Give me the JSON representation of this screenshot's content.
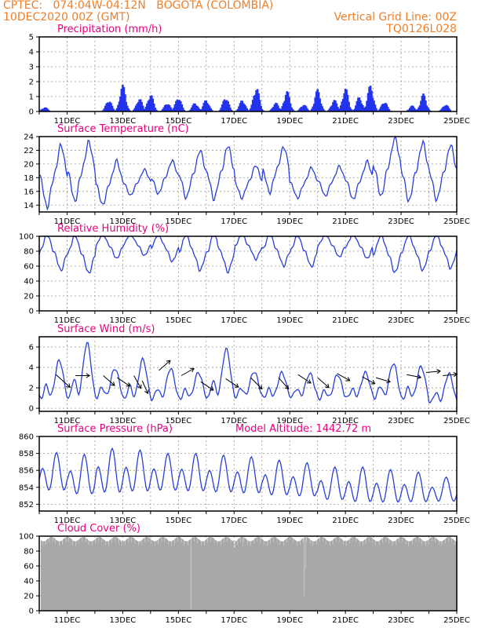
{
  "header": {
    "line1": "CPTEC:   074:04W-04:12N   BOGOTA (COLOMBIA)",
    "line2": "10DEC2020 00Z (GMT)",
    "grid_note": "Vertical Grid Line: 00Z",
    "code": "TQ0126L028"
  },
  "model_altitude": "Model Altitude: 1442.72 m",
  "colors": {
    "header": "#f07f28",
    "title": "#e8007f",
    "bar": "#2233ee",
    "line": "#2a3fd8",
    "cloud": "#a8a8a8",
    "arrow": "#000000"
  },
  "chart_data": [
    {
      "type": "bar",
      "title": "Precipitation (mm/h)",
      "x_range_days": [
        10,
        25
      ],
      "x_ticks": [
        "11DEC",
        "13DEC",
        "15DEC",
        "17DEC",
        "19DEC",
        "21DEC",
        "23DEC",
        "25DEC"
      ],
      "y_ticks": [
        "0",
        "1",
        "2",
        "3",
        "4",
        "5"
      ],
      "ylim": [
        0,
        5
      ],
      "grid": true,
      "events": [
        {
          "day": 10.2,
          "peak": 0.3
        },
        {
          "day": 12.5,
          "peak": 0.8
        },
        {
          "day": 13.0,
          "peak": 1.8
        },
        {
          "day": 13.6,
          "peak": 0.9
        },
        {
          "day": 14.0,
          "peak": 1.2
        },
        {
          "day": 14.6,
          "peak": 0.6
        },
        {
          "day": 15.0,
          "peak": 1.0
        },
        {
          "day": 15.6,
          "peak": 0.6
        },
        {
          "day": 16.0,
          "peak": 0.8
        },
        {
          "day": 16.7,
          "peak": 1.0
        },
        {
          "day": 17.3,
          "peak": 0.8
        },
        {
          "day": 17.8,
          "peak": 1.7
        },
        {
          "day": 18.5,
          "peak": 0.6
        },
        {
          "day": 18.9,
          "peak": 1.4
        },
        {
          "day": 19.5,
          "peak": 0.5
        },
        {
          "day": 20.0,
          "peak": 1.5
        },
        {
          "day": 20.6,
          "peak": 0.8
        },
        {
          "day": 21.0,
          "peak": 1.6
        },
        {
          "day": 21.5,
          "peak": 1.0
        },
        {
          "day": 21.9,
          "peak": 1.8
        },
        {
          "day": 22.4,
          "peak": 0.7
        },
        {
          "day": 23.4,
          "peak": 0.4
        },
        {
          "day": 23.8,
          "peak": 1.2
        },
        {
          "day": 24.6,
          "peak": 0.5
        }
      ]
    },
    {
      "type": "line",
      "title": "Surface Temperature (nC)",
      "x_ticks": [
        "11DEC",
        "13DEC",
        "15DEC",
        "17DEC",
        "19DEC",
        "21DEC",
        "23DEC",
        "25DEC"
      ],
      "y_ticks": [
        "14",
        "16",
        "18",
        "20",
        "22",
        "24"
      ],
      "ylim": [
        13,
        24
      ],
      "grid": true,
      "daily_max": [
        22.8,
        23.3,
        20.5,
        19.2,
        20.5,
        22.0,
        22.7,
        19.8,
        22.5,
        19.5,
        19.7,
        20.4,
        23.9,
        23.2,
        22.8
      ],
      "daily_min": [
        13.6,
        14.5,
        14.0,
        15.4,
        15.6,
        15.0,
        14.8,
        15.0,
        15.8,
        15.0,
        15.3,
        14.8,
        15.2,
        14.5,
        14.7
      ]
    },
    {
      "type": "line",
      "title": "Relative Humidity (%)",
      "x_ticks": [
        "11DEC",
        "13DEC",
        "15DEC",
        "17DEC",
        "19DEC",
        "21DEC",
        "23DEC",
        "25DEC"
      ],
      "y_ticks": [
        "0",
        "20",
        "40",
        "60",
        "80",
        "100"
      ],
      "ylim": [
        0,
        100
      ],
      "grid": true,
      "daily_min": [
        50,
        46,
        66,
        70,
        62,
        50,
        48,
        65,
        56,
        55,
        68,
        66,
        47,
        50,
        53
      ],
      "daily_max": [
        100,
        99,
        100,
        100,
        100,
        100,
        100,
        100,
        100,
        98,
        100,
        100,
        100,
        100,
        100
      ]
    },
    {
      "type": "line",
      "title": "Surface Wind (m/s)",
      "x_ticks": [
        "11DEC",
        "13DEC",
        "15DEC",
        "17DEC",
        "19DEC",
        "21DEC",
        "23DEC",
        "25DEC"
      ],
      "y_ticks": [
        "0",
        "2",
        "4",
        "6"
      ],
      "ylim": [
        -0.3,
        7
      ],
      "grid": true,
      "daily_peak": [
        4.7,
        6.4,
        3.9,
        4.8,
        3.9,
        3.5,
        5.8,
        3.6,
        3.5,
        3.4,
        3.3,
        3.5,
        4.4,
        4.1,
        3.4
      ],
      "daily_low": [
        0.6,
        0.5,
        0.8,
        0.5,
        0.6,
        0.7,
        0.6,
        0.9,
        0.8,
        0.9,
        0.7,
        0.8,
        0.7,
        0.6,
        0.3
      ],
      "vectors": [
        {
          "day": 10.6,
          "speed": 3.3,
          "u": 1.0,
          "v": -0.9
        },
        {
          "day": 11.3,
          "speed": 3.2,
          "u": 1.0,
          "v": 0.0
        },
        {
          "day": 12.3,
          "speed": 3.2,
          "u": 0.8,
          "v": -0.7
        },
        {
          "day": 12.8,
          "speed": 3.0,
          "u": 0.9,
          "v": -0.6
        },
        {
          "day": 13.4,
          "speed": 3.2,
          "u": 0.5,
          "v": -0.9
        },
        {
          "day": 13.7,
          "speed": 2.7,
          "u": 0.4,
          "v": -0.9
        },
        {
          "day": 14.3,
          "speed": 3.7,
          "u": 0.8,
          "v": 0.7
        },
        {
          "day": 15.1,
          "speed": 3.2,
          "u": 0.9,
          "v": 0.5
        },
        {
          "day": 15.8,
          "speed": 2.6,
          "u": 0.9,
          "v": -0.6
        },
        {
          "day": 16.7,
          "speed": 2.9,
          "u": 0.9,
          "v": -0.6
        },
        {
          "day": 17.6,
          "speed": 3.0,
          "u": 0.8,
          "v": -0.8
        },
        {
          "day": 18.6,
          "speed": 3.0,
          "u": 0.7,
          "v": -0.8
        },
        {
          "day": 19.3,
          "speed": 3.3,
          "u": 0.9,
          "v": -0.6
        },
        {
          "day": 20.0,
          "speed": 3.0,
          "u": 0.8,
          "v": -0.7
        },
        {
          "day": 20.7,
          "speed": 3.4,
          "u": 0.9,
          "v": -0.5
        },
        {
          "day": 21.6,
          "speed": 3.1,
          "u": 0.9,
          "v": -0.5
        },
        {
          "day": 22.1,
          "speed": 3.0,
          "u": 1.0,
          "v": -0.3
        },
        {
          "day": 23.2,
          "speed": 3.3,
          "u": 1.0,
          "v": -0.2
        },
        {
          "day": 23.9,
          "speed": 3.5,
          "u": 1.0,
          "v": 0.1
        },
        {
          "day": 24.5,
          "speed": 3.2,
          "u": 1.0,
          "v": 0.1
        }
      ]
    },
    {
      "type": "line",
      "title": "Surface Pressure (hPa)",
      "x_ticks": [
        "11DEC",
        "13DEC",
        "15DEC",
        "17DEC",
        "19DEC",
        "21DEC",
        "23DEC",
        "25DEC"
      ],
      "y_ticks": [
        "852",
        "854",
        "856",
        "858",
        "860"
      ],
      "ylim": [
        851.2,
        860
      ],
      "grid": true,
      "daily_max": [
        858.1,
        857.9,
        858.6,
        858.4,
        858.0,
        858.0,
        857.8,
        857.6,
        857.2,
        856.9,
        856.4,
        856.4,
        856.1,
        855.8,
        855.2
      ],
      "daily_min": [
        852.8,
        852.3,
        852.4,
        852.6,
        852.8,
        852.7,
        852.6,
        852.5,
        852.3,
        852.2,
        851.8,
        851.5,
        851.5,
        851.6,
        851.8
      ]
    },
    {
      "type": "area",
      "title": "Cloud Cover (%)",
      "x_ticks": [
        "11DEC",
        "13DEC",
        "15DEC",
        "17DEC",
        "19DEC",
        "21DEC",
        "23DEC",
        "25DEC"
      ],
      "y_ticks": [
        "0",
        "20",
        "40",
        "60",
        "80",
        "100"
      ],
      "ylim": [
        0,
        100
      ],
      "grid": true,
      "base_level": 96,
      "dips": [
        {
          "day": 15.45,
          "value": 2
        },
        {
          "day": 19.5,
          "value": 20
        },
        {
          "day": 19.55,
          "value": 55
        },
        {
          "day": 17.0,
          "value": 85
        },
        {
          "day": 17.3,
          "value": 85
        },
        {
          "day": 13.6,
          "value": 90
        }
      ]
    }
  ]
}
